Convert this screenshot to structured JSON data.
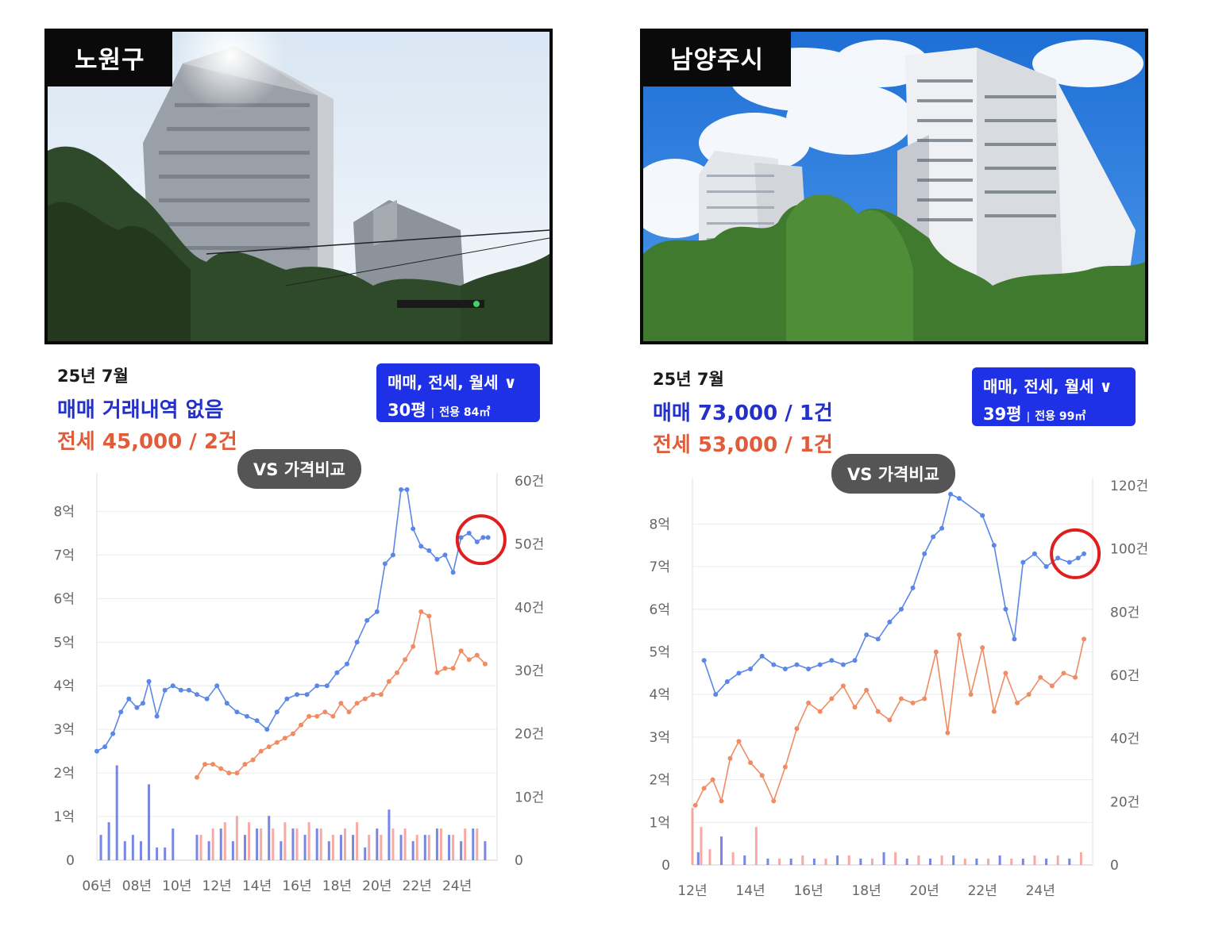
{
  "panels": [
    {
      "id": "left",
      "region": "노원구",
      "date": "25년 7월",
      "sale_text": "매매 거래내역 없음",
      "jeonse_text": "전세 45,000 / 2건",
      "filter": {
        "types": "매매, 전세, 월세 ∨",
        "size": "30평",
        "area_label": "전용 84㎡"
      },
      "compare_button": "VS 가격비교"
    },
    {
      "id": "right",
      "region": "남양주시",
      "date": "25년 7월",
      "sale_text": "매매 73,000 / 1건",
      "jeonse_text": "전세 53,000 / 1건",
      "filter": {
        "types": "매매, 전세, 월세 ∨",
        "size": "39평",
        "area_label": "전용 99㎡"
      },
      "compare_button": "VS 가격비교"
    }
  ],
  "colors": {
    "sale": "#5b87e6",
    "jeonse": "#f08c63",
    "volume_green": "#5fbf4f",
    "highlight": "#e01e1e",
    "filter_bg": "#1f31e6"
  },
  "chart_data": [
    {
      "type": "line",
      "panel": "left",
      "y_left_ticks": [
        "0",
        "1억",
        "2억",
        "3억",
        "4억",
        "5억",
        "6억",
        "7억",
        "8억"
      ],
      "y_left_range": [
        0,
        8.7
      ],
      "y_right_ticks": [
        "0",
        "10건",
        "20건",
        "30건",
        "40건",
        "50건",
        "60건"
      ],
      "y_right_range": [
        0,
        60
      ],
      "x_ticks": [
        "06년",
        "08년",
        "10년",
        "12년",
        "14년",
        "16년",
        "18년",
        "20년",
        "22년",
        "24년"
      ],
      "x_range": [
        2006.0,
        2026.0
      ],
      "grid": true,
      "series": [
        {
          "key": "sale",
          "color": "#5b87e6",
          "x": [
            2006.0,
            2006.4,
            2006.8,
            2007.2,
            2007.6,
            2008.0,
            2008.3,
            2008.6,
            2009.0,
            2009.4,
            2009.8,
            2010.2,
            2010.6,
            2011.0,
            2011.5,
            2012.0,
            2012.5,
            2013.0,
            2013.5,
            2014.0,
            2014.5,
            2015.0,
            2015.5,
            2016.0,
            2016.5,
            2017.0,
            2017.5,
            2018.0,
            2018.5,
            2019.0,
            2019.5,
            2020.0,
            2020.4,
            2020.8,
            2021.2,
            2021.5,
            2021.8,
            2022.2,
            2022.6,
            2023.0,
            2023.4,
            2023.8,
            2024.2,
            2024.6,
            2025.0,
            2025.3,
            2025.55
          ],
          "values": [
            2.5,
            2.6,
            2.9,
            3.4,
            3.7,
            3.5,
            3.6,
            4.1,
            3.3,
            3.9,
            4.0,
            3.9,
            3.9,
            3.8,
            3.7,
            4.0,
            3.6,
            3.4,
            3.3,
            3.2,
            3.0,
            3.4,
            3.7,
            3.8,
            3.8,
            4.0,
            4.0,
            4.3,
            4.5,
            5.0,
            5.5,
            5.7,
            6.8,
            7.0,
            8.5,
            8.5,
            7.6,
            7.2,
            7.1,
            6.9,
            7.0,
            6.6,
            7.4,
            7.5,
            7.3,
            7.4,
            7.4
          ]
        },
        {
          "key": "jeonse",
          "color": "#f08c63",
          "x": [
            2011.0,
            2011.4,
            2011.8,
            2012.2,
            2012.6,
            2013.0,
            2013.4,
            2013.8,
            2014.2,
            2014.6,
            2015.0,
            2015.4,
            2015.8,
            2016.2,
            2016.6,
            2017.0,
            2017.4,
            2017.8,
            2018.2,
            2018.6,
            2019.0,
            2019.4,
            2019.8,
            2020.2,
            2020.6,
            2021.0,
            2021.4,
            2021.8,
            2022.2,
            2022.6,
            2023.0,
            2023.4,
            2023.8,
            2024.2,
            2024.6,
            2025.0,
            2025.4
          ],
          "values": [
            1.9,
            2.2,
            2.2,
            2.1,
            2.0,
            2.0,
            2.2,
            2.3,
            2.5,
            2.6,
            2.7,
            2.8,
            2.9,
            3.1,
            3.3,
            3.3,
            3.4,
            3.3,
            3.6,
            3.4,
            3.6,
            3.7,
            3.8,
            3.8,
            4.1,
            4.3,
            4.6,
            4.9,
            5.7,
            5.6,
            4.3,
            4.4,
            4.4,
            4.8,
            4.6,
            4.7,
            4.5
          ]
        }
      ],
      "volume_series": [
        {
          "key": "sale_volume",
          "color": "#4a5fd9",
          "x": [
            2006.2,
            2006.6,
            2007.0,
            2007.4,
            2007.8,
            2008.2,
            2008.6,
            2009.0,
            2009.4,
            2009.8,
            2011.0,
            2011.6,
            2012.2,
            2012.8,
            2013.4,
            2014.0,
            2014.6,
            2015.2,
            2015.8,
            2016.4,
            2017.0,
            2017.6,
            2018.2,
            2018.8,
            2019.4,
            2020.0,
            2020.6,
            2021.2,
            2021.8,
            2022.4,
            2023.0,
            2023.6,
            2024.2,
            2024.8,
            2025.4
          ],
          "values": [
            4,
            6,
            15,
            3,
            4,
            3,
            12,
            2,
            2,
            5,
            4,
            3,
            5,
            3,
            4,
            5,
            7,
            3,
            5,
            4,
            5,
            3,
            4,
            4,
            2,
            5,
            8,
            4,
            3,
            4,
            5,
            4,
            3,
            5,
            3
          ]
        },
        {
          "key": "jeonse_volume",
          "color": "#f48d86",
          "x": [
            2011.2,
            2011.8,
            2012.4,
            2013.0,
            2013.6,
            2014.2,
            2014.8,
            2015.4,
            2016.0,
            2016.6,
            2017.2,
            2017.8,
            2018.4,
            2019.0,
            2019.6,
            2020.2,
            2020.8,
            2021.4,
            2022.0,
            2022.6,
            2023.2,
            2023.8,
            2024.4,
            2025.0
          ],
          "values": [
            4,
            5,
            6,
            7,
            6,
            5,
            5,
            6,
            5,
            6,
            5,
            4,
            5,
            6,
            4,
            4,
            5,
            5,
            4,
            4,
            5,
            4,
            5,
            5
          ]
        }
      ],
      "highlight": {
        "x": 2025.2,
        "y": 7.35,
        "note": "red circle"
      }
    },
    {
      "type": "line",
      "panel": "right",
      "y_left_ticks": [
        "0",
        "1억",
        "2억",
        "3억",
        "4억",
        "5억",
        "6억",
        "7억",
        "8억"
      ],
      "y_left_range": [
        0,
        8.9
      ],
      "y_right_ticks": [
        "0",
        "20건",
        "40건",
        "60건",
        "80건",
        "100건",
        "120건"
      ],
      "y_right_range": [
        0,
        120
      ],
      "x_ticks": [
        "12년",
        "14년",
        "16년",
        "18년",
        "20년",
        "22년",
        "24년"
      ],
      "x_range": [
        2012.0,
        2025.8
      ],
      "grid": true,
      "series": [
        {
          "key": "sale",
          "color": "#5b87e6",
          "x": [
            2012.4,
            2012.8,
            2013.2,
            2013.6,
            2014.0,
            2014.4,
            2014.8,
            2015.2,
            2015.6,
            2016.0,
            2016.4,
            2016.8,
            2017.2,
            2017.6,
            2018.0,
            2018.4,
            2018.8,
            2019.2,
            2019.6,
            2020.0,
            2020.3,
            2020.6,
            2020.9,
            2021.2,
            2022.0,
            2022.4,
            2022.8,
            2023.1,
            2023.4,
            2023.8,
            2024.2,
            2024.6,
            2025.0,
            2025.3,
            2025.5
          ],
          "values": [
            4.8,
            4.0,
            4.3,
            4.5,
            4.6,
            4.9,
            4.7,
            4.6,
            4.7,
            4.6,
            4.7,
            4.8,
            4.7,
            4.8,
            5.4,
            5.3,
            5.7,
            6.0,
            6.5,
            7.3,
            7.7,
            7.9,
            8.7,
            8.6,
            8.2,
            7.5,
            6.0,
            5.3,
            7.1,
            7.3,
            7.0,
            7.2,
            7.1,
            7.2,
            7.3
          ]
        },
        {
          "key": "jeonse",
          "color": "#f08c63",
          "x": [
            2012.1,
            2012.4,
            2012.7,
            2013.0,
            2013.3,
            2013.6,
            2014.0,
            2014.4,
            2014.8,
            2015.2,
            2015.6,
            2016.0,
            2016.4,
            2016.8,
            2017.2,
            2017.6,
            2018.0,
            2018.4,
            2018.8,
            2019.2,
            2019.6,
            2020.0,
            2020.4,
            2020.8,
            2021.2,
            2021.6,
            2022.0,
            2022.4,
            2022.8,
            2023.2,
            2023.6,
            2024.0,
            2024.4,
            2024.8,
            2025.2,
            2025.5
          ],
          "values": [
            1.4,
            1.8,
            2.0,
            1.5,
            2.5,
            2.9,
            2.4,
            2.1,
            1.5,
            2.3,
            3.2,
            3.8,
            3.6,
            3.9,
            4.2,
            3.7,
            4.1,
            3.6,
            3.4,
            3.9,
            3.8,
            3.9,
            5.0,
            3.1,
            5.4,
            4.0,
            5.1,
            3.6,
            4.5,
            3.8,
            4.0,
            4.4,
            4.2,
            4.5,
            4.4,
            5.3
          ]
        }
      ],
      "volume_series": [
        {
          "key": "sale_volume",
          "color": "#4a5fd9",
          "x": [
            2012.2,
            2013.0,
            2013.8,
            2014.6,
            2015.4,
            2016.2,
            2017.0,
            2017.8,
            2018.6,
            2019.4,
            2020.2,
            2021.0,
            2021.8,
            2022.6,
            2023.4,
            2024.2,
            2025.0
          ],
          "values": [
            4,
            9,
            3,
            2,
            2,
            2,
            3,
            2,
            4,
            2,
            2,
            3,
            2,
            3,
            2,
            2,
            2
          ]
        },
        {
          "key": "jeonse_volume",
          "color": "#f48d86",
          "x": [
            2012.0,
            2012.3,
            2012.6,
            2013.4,
            2014.2,
            2015.0,
            2015.8,
            2016.6,
            2017.4,
            2018.2,
            2019.0,
            2019.8,
            2020.6,
            2021.4,
            2022.2,
            2023.0,
            2023.8,
            2024.6,
            2025.4
          ],
          "values": [
            18,
            12,
            5,
            4,
            12,
            2,
            3,
            2,
            3,
            2,
            4,
            3,
            3,
            2,
            2,
            2,
            3,
            3,
            4
          ]
        }
      ],
      "highlight": {
        "x": 2025.2,
        "y": 7.3,
        "note": "red circle"
      }
    }
  ]
}
